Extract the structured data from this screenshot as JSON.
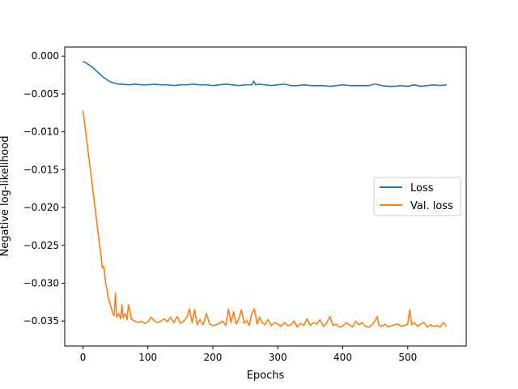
{
  "chart_data": {
    "type": "line",
    "xlabel": "Epochs",
    "ylabel": "Negative log-likelihood",
    "xlim": [
      -28,
      590
    ],
    "ylim": [
      -0.0383,
      0.0012
    ],
    "xticks": [
      0,
      100,
      200,
      300,
      400,
      500
    ],
    "xtick_labels": [
      "0",
      "100",
      "200",
      "300",
      "400",
      "500"
    ],
    "yticks": [
      0.0,
      -0.005,
      -0.01,
      -0.015,
      -0.02,
      -0.025,
      -0.03,
      -0.035
    ],
    "ytick_labels": [
      "0.000",
      "−0.005",
      "−0.010",
      "−0.015",
      "−0.020",
      "−0.025",
      "−0.030",
      "−0.035"
    ],
    "grid": false,
    "legend_position": "center-right",
    "series": [
      {
        "name": "Loss",
        "color": "#1f77b4",
        "x": [
          0,
          5,
          10,
          15,
          20,
          25,
          30,
          35,
          40,
          45,
          50,
          55,
          60,
          70,
          80,
          90,
          100,
          110,
          120,
          130,
          140,
          150,
          160,
          170,
          180,
          190,
          200,
          210,
          220,
          230,
          240,
          250,
          260,
          263,
          266,
          270,
          280,
          290,
          300,
          310,
          320,
          330,
          340,
          350,
          360,
          370,
          380,
          390,
          400,
          410,
          420,
          430,
          440,
          450,
          460,
          470,
          480,
          490,
          500,
          510,
          520,
          530,
          540,
          550,
          560
        ],
        "values": [
          -0.0007,
          -0.0009,
          -0.0012,
          -0.0015,
          -0.0019,
          -0.0023,
          -0.0027,
          -0.003,
          -0.0033,
          -0.0035,
          -0.0036,
          -0.0037,
          -0.0037,
          -0.0038,
          -0.0037,
          -0.0038,
          -0.0038,
          -0.0037,
          -0.0038,
          -0.0038,
          -0.0039,
          -0.0038,
          -0.0038,
          -0.0037,
          -0.0038,
          -0.0038,
          -0.0039,
          -0.0038,
          -0.0037,
          -0.0038,
          -0.0039,
          -0.0038,
          -0.0038,
          -0.0033,
          -0.0038,
          -0.0037,
          -0.0038,
          -0.0039,
          -0.0038,
          -0.0037,
          -0.0039,
          -0.0039,
          -0.0038,
          -0.0039,
          -0.0039,
          -0.0039,
          -0.004,
          -0.0039,
          -0.0038,
          -0.0039,
          -0.0039,
          -0.0039,
          -0.0039,
          -0.0037,
          -0.0039,
          -0.004,
          -0.004,
          -0.0039,
          -0.004,
          -0.0038,
          -0.004,
          -0.0039,
          -0.0038,
          -0.0039,
          -0.0038
        ]
      },
      {
        "name": "Val. loss",
        "color": "#ff7f0e",
        "x": [
          0,
          5,
          10,
          15,
          20,
          25,
          28,
          30,
          32,
          34,
          35,
          37,
          38,
          40,
          42,
          44,
          46,
          48,
          50,
          52,
          55,
          58,
          60,
          62,
          65,
          68,
          70,
          75,
          80,
          85,
          90,
          95,
          100,
          105,
          110,
          115,
          120,
          125,
          130,
          135,
          140,
          145,
          150,
          155,
          160,
          164,
          168,
          172,
          176,
          180,
          185,
          190,
          195,
          200,
          205,
          210,
          215,
          220,
          224,
          228,
          232,
          236,
          240,
          244,
          248,
          252,
          256,
          260,
          264,
          268,
          272,
          276,
          280,
          285,
          290,
          295,
          300,
          305,
          310,
          315,
          320,
          325,
          330,
          335,
          340,
          345,
          350,
          355,
          360,
          365,
          370,
          375,
          380,
          385,
          390,
          395,
          400,
          405,
          410,
          415,
          420,
          425,
          430,
          435,
          440,
          445,
          450,
          453,
          456,
          460,
          465,
          470,
          475,
          480,
          485,
          490,
          495,
          500,
          503,
          506,
          510,
          515,
          520,
          525,
          530,
          535,
          540,
          545,
          550,
          555,
          560
        ],
        "values": [
          -0.0072,
          -0.0105,
          -0.014,
          -0.0175,
          -0.021,
          -0.0245,
          -0.0265,
          -0.028,
          -0.0278,
          -0.0292,
          -0.03,
          -0.0308,
          -0.0316,
          -0.0322,
          -0.0328,
          -0.0334,
          -0.034,
          -0.0343,
          -0.0313,
          -0.0345,
          -0.034,
          -0.0347,
          -0.0328,
          -0.0346,
          -0.034,
          -0.0348,
          -0.0328,
          -0.0348,
          -0.035,
          -0.0352,
          -0.035,
          -0.0353,
          -0.0351,
          -0.0345,
          -0.035,
          -0.0352,
          -0.035,
          -0.0347,
          -0.0351,
          -0.0345,
          -0.0352,
          -0.0344,
          -0.0353,
          -0.035,
          -0.0345,
          -0.0334,
          -0.0352,
          -0.0335,
          -0.0355,
          -0.0348,
          -0.0355,
          -0.034,
          -0.0354,
          -0.0356,
          -0.0355,
          -0.0353,
          -0.035,
          -0.0356,
          -0.0334,
          -0.0352,
          -0.0338,
          -0.0354,
          -0.0347,
          -0.0335,
          -0.0353,
          -0.0349,
          -0.0356,
          -0.034,
          -0.0334,
          -0.0354,
          -0.0345,
          -0.0352,
          -0.0355,
          -0.0348,
          -0.0356,
          -0.0352,
          -0.0354,
          -0.0357,
          -0.0352,
          -0.0356,
          -0.0355,
          -0.035,
          -0.0358,
          -0.0353,
          -0.0356,
          -0.0347,
          -0.0356,
          -0.0352,
          -0.0354,
          -0.0348,
          -0.0357,
          -0.0353,
          -0.0344,
          -0.0356,
          -0.0354,
          -0.0358,
          -0.0357,
          -0.0352,
          -0.0355,
          -0.0358,
          -0.035,
          -0.0355,
          -0.0352,
          -0.0357,
          -0.0358,
          -0.0355,
          -0.0349,
          -0.0344,
          -0.0356,
          -0.0357,
          -0.0354,
          -0.0358,
          -0.0356,
          -0.0355,
          -0.0354,
          -0.0357,
          -0.0356,
          -0.0354,
          -0.0335,
          -0.0355,
          -0.0352,
          -0.0357,
          -0.0354,
          -0.0352,
          -0.0358,
          -0.0355,
          -0.0357,
          -0.0356,
          -0.0358,
          -0.0352,
          -0.0357
        ]
      }
    ]
  }
}
